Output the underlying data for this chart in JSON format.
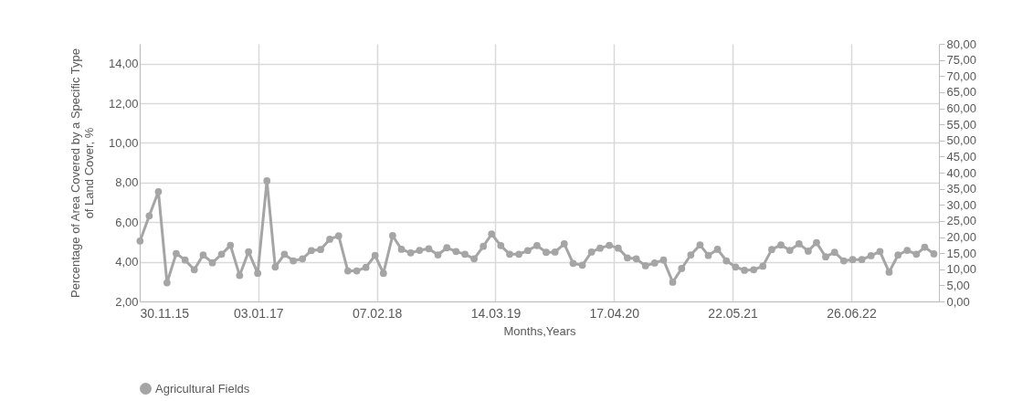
{
  "chart_data": {
    "type": "line",
    "xlabel": "Months,Years",
    "ylabel": "Percentage of Area Covered by a Specific Type of Land Cover, %",
    "x": [
      "2015-12",
      "2016-01",
      "2016-02",
      "2016-03",
      "2016-04",
      "2016-05",
      "2016-06",
      "2016-07",
      "2016-08",
      "2016-09",
      "2016-10",
      "2016-11",
      "2016-12",
      "2017-01",
      "2017-02",
      "2017-03",
      "2017-04",
      "2017-05",
      "2017-06",
      "2017-07",
      "2017-08",
      "2017-09",
      "2017-10",
      "2017-11",
      "2017-12",
      "2018-01",
      "2018-02",
      "2018-03",
      "2018-04",
      "2018-05",
      "2018-06",
      "2018-07",
      "2018-08",
      "2018-09",
      "2018-10",
      "2018-11",
      "2018-12",
      "2019-01",
      "2019-02",
      "2019-03",
      "2019-04",
      "2019-05",
      "2019-06",
      "2019-07",
      "2019-08",
      "2019-09",
      "2019-10",
      "2019-11",
      "2019-12",
      "2020-01",
      "2020-02",
      "2020-03",
      "2020-04",
      "2020-05",
      "2020-06",
      "2020-07",
      "2020-08",
      "2020-09",
      "2020-10",
      "2020-11",
      "2020-12",
      "2021-01",
      "2021-02",
      "2021-03",
      "2021-04",
      "2021-05",
      "2021-06",
      "2021-07",
      "2021-08",
      "2021-09",
      "2021-10",
      "2021-11",
      "2021-12",
      "2022-01",
      "2022-02",
      "2022-03",
      "2022-04",
      "2022-05",
      "2022-06",
      "2022-07",
      "2022-08",
      "2022-09",
      "2022-10",
      "2022-11",
      "2022-12",
      "2023-01",
      "2023-02",
      "2023-03",
      "2023-04"
    ],
    "series": [
      {
        "name": "Agricultural Fields",
        "color": "#a5a5a5",
        "values": [
          5.05,
          6.32,
          7.54,
          2.94,
          4.42,
          4.09,
          3.6,
          4.35,
          3.95,
          4.38,
          4.83,
          3.31,
          4.51,
          3.42,
          8.09,
          3.74,
          4.38,
          4.05,
          4.15,
          4.57,
          4.62,
          5.14,
          5.31,
          3.54,
          3.54,
          3.72,
          4.32,
          3.42,
          5.32,
          4.63,
          4.45,
          4.58,
          4.66,
          4.35,
          4.71,
          4.52,
          4.38,
          4.15,
          4.78,
          5.4,
          4.82,
          4.38,
          4.38,
          4.57,
          4.82,
          4.48,
          4.49,
          4.91,
          3.92,
          3.83,
          4.49,
          4.69,
          4.83,
          4.69,
          4.2,
          4.15,
          3.8,
          3.94,
          4.09,
          2.97,
          3.66,
          4.35,
          4.85,
          4.32,
          4.63,
          4.05,
          3.74,
          3.57,
          3.6,
          3.78,
          4.62,
          4.85,
          4.58,
          4.91,
          4.54,
          4.97,
          4.25,
          4.48,
          4.05,
          4.11,
          4.11,
          4.31,
          4.52,
          3.48,
          4.34,
          4.58,
          4.38,
          4.74,
          4.4
        ]
      }
    ],
    "xlim": [
      "2015-11-30",
      "2023-04-18"
    ],
    "xticks": [
      {
        "value": "2015-11-30",
        "label": "30.11.15"
      },
      {
        "value": "2017-01-03",
        "label": "03.01.17"
      },
      {
        "value": "2018-02-07",
        "label": "07.02.18"
      },
      {
        "value": "2019-03-14",
        "label": "14.03.19"
      },
      {
        "value": "2020-04-17",
        "label": "17.04.20"
      },
      {
        "value": "2021-05-22",
        "label": "22.05.21"
      },
      {
        "value": "2022-06-26",
        "label": "26.06.22"
      }
    ],
    "ylim": [
      2,
      15
    ],
    "yticks": [
      {
        "value": 2,
        "label": "2,00"
      },
      {
        "value": 4,
        "label": "4,00"
      },
      {
        "value": 6,
        "label": "6,00"
      },
      {
        "value": 8,
        "label": "8,00"
      },
      {
        "value": 10,
        "label": "10,00"
      },
      {
        "value": 12,
        "label": "12,00"
      },
      {
        "value": 14,
        "label": "14,00"
      }
    ],
    "y2lim": [
      0,
      80
    ],
    "y2ticks": [
      {
        "value": 0,
        "label": "0,00"
      },
      {
        "value": 5,
        "label": "5,00"
      },
      {
        "value": 10,
        "label": "10,00"
      },
      {
        "value": 15,
        "label": "15,00"
      },
      {
        "value": 20,
        "label": "20,00"
      },
      {
        "value": 25,
        "label": "25,00"
      },
      {
        "value": 30,
        "label": "30,00"
      },
      {
        "value": 35,
        "label": "35,00"
      },
      {
        "value": 40,
        "label": "40,00"
      },
      {
        "value": 45,
        "label": "45,00"
      },
      {
        "value": 50,
        "label": "50,00"
      },
      {
        "value": 55,
        "label": "55,00"
      },
      {
        "value": 60,
        "label": "60,00"
      },
      {
        "value": 65,
        "label": "65,00"
      },
      {
        "value": 70,
        "label": "70,00"
      },
      {
        "value": 75,
        "label": "75,00"
      },
      {
        "value": 80,
        "label": "80,00"
      }
    ],
    "grid": true,
    "legend": "bottom",
    "marker": "circle",
    "line_style": "solid"
  }
}
